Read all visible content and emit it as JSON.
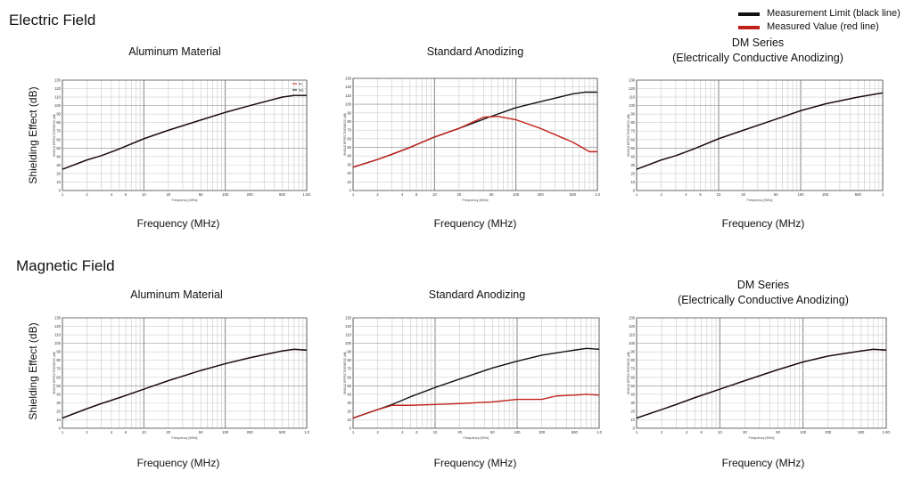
{
  "legend": [
    {
      "label": "Measurement Limit (black line)",
      "color": "#111111"
    },
    {
      "label": "Measured Value (red line)",
      "color": "#c0201a"
    }
  ],
  "sections": [
    {
      "title": "Electric Field",
      "ylabel": "Shielding Effect (dB)"
    },
    {
      "title": "Magnetic Field",
      "ylabel": "Shielding Effect (dB)"
    }
  ],
  "chart_data": [
    {
      "type": "line",
      "section": 0,
      "title": "Aluminum Material",
      "subtitle": "",
      "xlabel": "Frequency (MHz)",
      "inner_ylabel": "SHIELD EFFECTIVENESS (dB)",
      "inner_xlabel": "Frequency [MHz]",
      "xscale": "log",
      "xlim": [
        1,
        1000
      ],
      "ylim": [
        0,
        130
      ],
      "xticks": [
        "1",
        "2",
        "4",
        "6",
        "10",
        "20",
        "50",
        "100",
        "200",
        "500",
        "1.0G"
      ],
      "yticks": [
        "0",
        "10",
        "20",
        "30",
        "40",
        "50",
        "60",
        "70",
        "80",
        "90",
        "100",
        "110",
        "120",
        "130"
      ],
      "series": [
        {
          "name": "Al",
          "color": "#c0201a",
          "x": [
            1,
            2,
            3,
            5,
            10,
            20,
            50,
            100,
            200,
            500,
            700,
            1000
          ],
          "y": [
            25,
            36,
            41,
            49,
            61,
            71,
            83,
            92,
            100,
            110,
            112,
            112
          ]
        },
        {
          "name": "Me",
          "color": "#111111",
          "x": [
            1,
            2,
            3,
            5,
            10,
            20,
            50,
            100,
            200,
            500,
            700,
            1000
          ],
          "y": [
            25,
            36,
            41,
            49,
            61,
            71,
            83,
            92,
            100,
            110,
            112,
            112
          ]
        }
      ]
    },
    {
      "type": "line",
      "section": 0,
      "title": "Standard Anodizing",
      "subtitle": "",
      "xlabel": "Frequency (MHz)",
      "inner_ylabel": "SHIELD EFFECTIVENESS (dB)",
      "inner_xlabel": "Frequency [MHz]",
      "xscale": "log",
      "xlim": [
        1,
        1000
      ],
      "ylim": [
        0,
        130
      ],
      "xticks": [
        "1",
        "2",
        "4",
        "6",
        "10",
        "20",
        "50",
        "100",
        "200",
        "500",
        "1.0"
      ],
      "yticks": [
        "0",
        "10",
        "20",
        "30",
        "40",
        "50",
        "60",
        "70",
        "80",
        "90",
        "100",
        "110",
        "120",
        "130"
      ],
      "series": [
        {
          "name": "",
          "color": "#111111",
          "x": [
            1,
            2,
            3,
            5,
            10,
            20,
            50,
            100,
            200,
            500,
            700,
            1000
          ],
          "y": [
            27,
            36,
            42,
            50,
            62,
            72,
            86,
            96,
            103,
            112,
            114,
            114
          ]
        },
        {
          "name": "",
          "color": "#c0201a",
          "x": [
            1,
            2,
            3,
            5,
            10,
            20,
            40,
            60,
            100,
            200,
            500,
            800,
            1000
          ],
          "y": [
            27,
            36,
            42,
            50,
            62,
            72,
            85,
            86,
            82,
            72,
            56,
            45,
            45
          ]
        }
      ]
    },
    {
      "type": "line",
      "section": 0,
      "title": "DM Series",
      "subtitle": "(Electrically Conductive Anodizing)",
      "xlabel": "Frequency (MHz)",
      "inner_ylabel": "SHIELD EFFECTIVENESS (dB)",
      "inner_xlabel": "Frequency [MHz]",
      "xscale": "log",
      "xlim": [
        1,
        1000
      ],
      "ylim": [
        0,
        130
      ],
      "xticks": [
        "1",
        "2",
        "4",
        "6",
        "10",
        "20",
        "50",
        "100",
        "200",
        "500",
        "1"
      ],
      "yticks": [
        "0",
        "10",
        "20",
        "30",
        "40",
        "50",
        "60",
        "70",
        "80",
        "90",
        "100",
        "110",
        "120",
        "130"
      ],
      "series": [
        {
          "name": "",
          "color": "#c0201a",
          "x": [
            1,
            2,
            3,
            5,
            10,
            20,
            50,
            100,
            200,
            500,
            1000
          ],
          "y": [
            25,
            36,
            41,
            49,
            61,
            71,
            84,
            94,
            102,
            110,
            115
          ]
        },
        {
          "name": "",
          "color": "#111111",
          "x": [
            1,
            2,
            3,
            5,
            10,
            20,
            50,
            100,
            200,
            500,
            1000
          ],
          "y": [
            25,
            36,
            41,
            49,
            61,
            71,
            84,
            94,
            102,
            110,
            115
          ]
        }
      ]
    },
    {
      "type": "line",
      "section": 1,
      "title": "Aluminum Material",
      "subtitle": "",
      "xlabel": "Frequency (MHz)",
      "inner_ylabel": "SHIELD EFFECTIVENESS (dB)",
      "inner_xlabel": "Frequency [MHz]",
      "xscale": "log",
      "xlim": [
        1,
        1000
      ],
      "ylim": [
        0,
        130
      ],
      "xticks": [
        "1",
        "2",
        "4",
        "6",
        "10",
        "20",
        "50",
        "100",
        "200",
        "500",
        "1.0"
      ],
      "yticks": [
        "0",
        "10",
        "20",
        "30",
        "40",
        "50",
        "60",
        "70",
        "80",
        "90",
        "100",
        "110",
        "120",
        "130"
      ],
      "series": [
        {
          "name": "",
          "color": "#c0201a",
          "x": [
            1,
            2,
            3,
            5,
            10,
            20,
            50,
            100,
            200,
            500,
            700,
            1000
          ],
          "y": [
            12,
            23,
            29,
            36,
            46,
            56,
            68,
            76,
            83,
            91,
            93,
            92
          ]
        },
        {
          "name": "",
          "color": "#111111",
          "x": [
            1,
            2,
            3,
            5,
            10,
            20,
            50,
            100,
            200,
            500,
            700,
            1000
          ],
          "y": [
            12,
            23,
            29,
            36,
            46,
            56,
            68,
            76,
            83,
            91,
            93,
            92
          ]
        }
      ]
    },
    {
      "type": "line",
      "section": 1,
      "title": "Standard Anodizing",
      "subtitle": "",
      "xlabel": "Frequency (MHz)",
      "inner_ylabel": "SHIELD EFFECTIVENESS (dB)",
      "inner_xlabel": "Frequency [MHz]",
      "xscale": "log",
      "xlim": [
        1,
        1000
      ],
      "ylim": [
        0,
        130
      ],
      "xticks": [
        "1",
        "2",
        "4",
        "6",
        "10",
        "20",
        "50",
        "100",
        "200",
        "500",
        "1.0"
      ],
      "yticks": [
        "0",
        "10",
        "20",
        "30",
        "40",
        "50",
        "60",
        "70",
        "80",
        "90",
        "100",
        "110",
        "120",
        "130"
      ],
      "series": [
        {
          "name": "",
          "color": "#111111",
          "x": [
            1,
            2,
            3,
            5,
            10,
            20,
            50,
            100,
            200,
            500,
            700,
            1000
          ],
          "y": [
            12,
            22,
            28,
            37,
            48,
            58,
            71,
            79,
            86,
            92,
            94,
            93
          ]
        },
        {
          "name": "",
          "color": "#c0201a",
          "x": [
            1,
            2,
            3,
            5,
            10,
            20,
            50,
            100,
            150,
            200,
            300,
            500,
            700,
            1000
          ],
          "y": [
            12,
            22,
            27,
            27,
            28,
            29,
            31,
            34,
            34,
            34,
            38,
            39,
            40,
            39
          ]
        }
      ]
    },
    {
      "type": "line",
      "section": 1,
      "title": "DM Series",
      "subtitle": "(Electrically Conductive Anodizing)",
      "xlabel": "Frequency (MHz)",
      "inner_ylabel": "SHIELD EFFECTIVENESS (dB)",
      "inner_xlabel": "Frequency [MHz]",
      "xscale": "log",
      "xlim": [
        1,
        1000
      ],
      "ylim": [
        0,
        130
      ],
      "xticks": [
        "1",
        "2",
        "4",
        "6",
        "10",
        "20",
        "50",
        "100",
        "200",
        "500",
        "1.0G"
      ],
      "yticks": [
        "0",
        "10",
        "20",
        "30",
        "40",
        "50",
        "60",
        "70",
        "80",
        "90",
        "100",
        "110",
        "120",
        "130"
      ],
      "series": [
        {
          "name": "",
          "color": "#c0201a",
          "x": [
            1,
            2,
            3,
            5,
            10,
            20,
            50,
            100,
            200,
            500,
            700,
            1000
          ],
          "y": [
            12,
            22,
            28,
            36,
            46,
            56,
            69,
            78,
            85,
            91,
            93,
            92
          ]
        },
        {
          "name": "",
          "color": "#111111",
          "x": [
            1,
            2,
            3,
            5,
            10,
            20,
            50,
            100,
            200,
            500,
            700,
            1000
          ],
          "y": [
            12,
            22,
            28,
            36,
            46,
            56,
            69,
            78,
            85,
            91,
            93,
            92
          ]
        }
      ]
    }
  ]
}
